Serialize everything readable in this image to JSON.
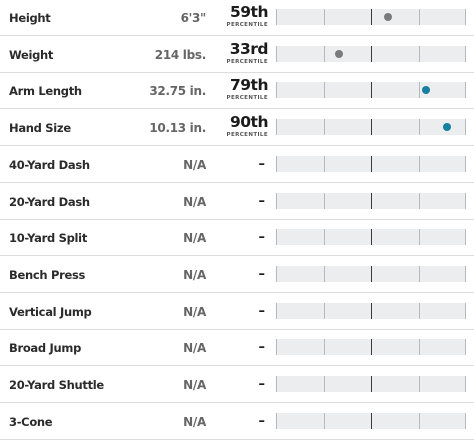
{
  "percentile_label": "PERCENTILE",
  "colors": {
    "dot_average": "#7a7a7a",
    "dot_high": "#177fa0",
    "track": "#ebedef"
  },
  "measurements": [
    {
      "metric": "Height",
      "value": "6'3\"",
      "percentile": "59th",
      "percentile_value": 59,
      "dot_color": "dot_average"
    },
    {
      "metric": "Weight",
      "value": "214 lbs.",
      "percentile": "33rd",
      "percentile_value": 33,
      "dot_color": "dot_average"
    },
    {
      "metric": "Arm Length",
      "value": "32.75 in.",
      "percentile": "79th",
      "percentile_value": 79,
      "dot_color": "dot_high"
    },
    {
      "metric": "Hand Size",
      "value": "10.13 in.",
      "percentile": "90th",
      "percentile_value": 90,
      "dot_color": "dot_high"
    },
    {
      "metric": "40-Yard Dash",
      "value": "N/A",
      "percentile": "–",
      "percentile_value": null
    },
    {
      "metric": "20-Yard Dash",
      "value": "N/A",
      "percentile": "–",
      "percentile_value": null
    },
    {
      "metric": "10-Yard Split",
      "value": "N/A",
      "percentile": "–",
      "percentile_value": null
    },
    {
      "metric": "Bench Press",
      "value": "N/A",
      "percentile": "–",
      "percentile_value": null
    },
    {
      "metric": "Vertical Jump",
      "value": "N/A",
      "percentile": "–",
      "percentile_value": null
    },
    {
      "metric": "Broad Jump",
      "value": "N/A",
      "percentile": "–",
      "percentile_value": null
    },
    {
      "metric": "20-Yard Shuttle",
      "value": "N/A",
      "percentile": "–",
      "percentile_value": null
    },
    {
      "metric": "3-Cone",
      "value": "N/A",
      "percentile": "–",
      "percentile_value": null
    }
  ]
}
